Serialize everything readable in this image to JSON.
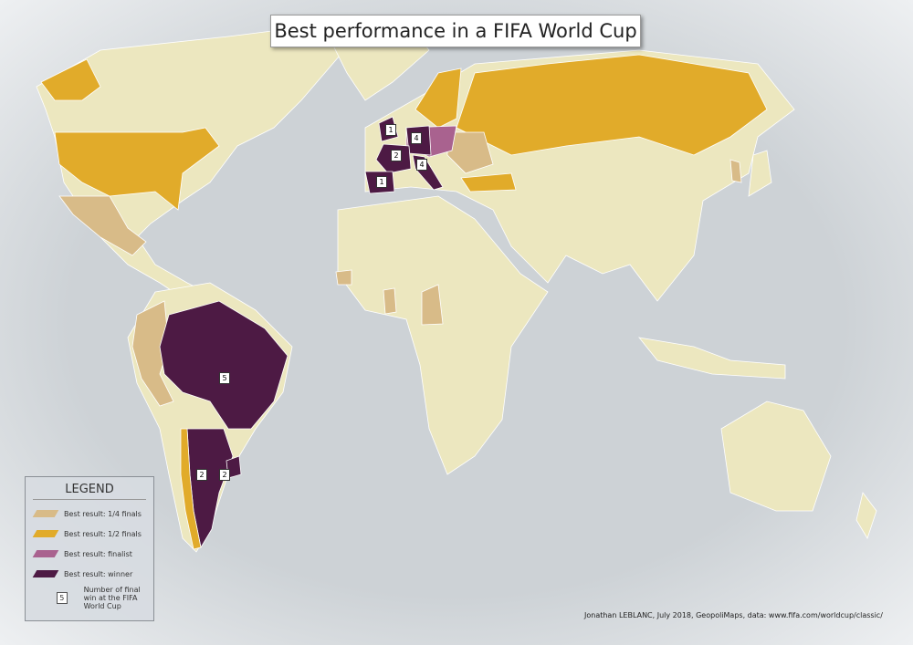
{
  "title": "Best performance in a FIFA World Cup",
  "legend": {
    "title": "LEGEND",
    "items": [
      "Best result: 1/4 finals",
      "Best result: 1/2 finals",
      "Best result: finalist",
      "Best result: winner"
    ],
    "badge_example": {
      "value": 5,
      "label": "Number of final win at the FIFA World Cup"
    }
  },
  "win_badges": [
    1,
    4,
    2,
    4,
    1,
    5,
    2,
    2
  ],
  "credit": "Jonathan LEBLANC, July 2018, GeopoliMaps, data: www.fifa.com/worldcup/classic/"
}
